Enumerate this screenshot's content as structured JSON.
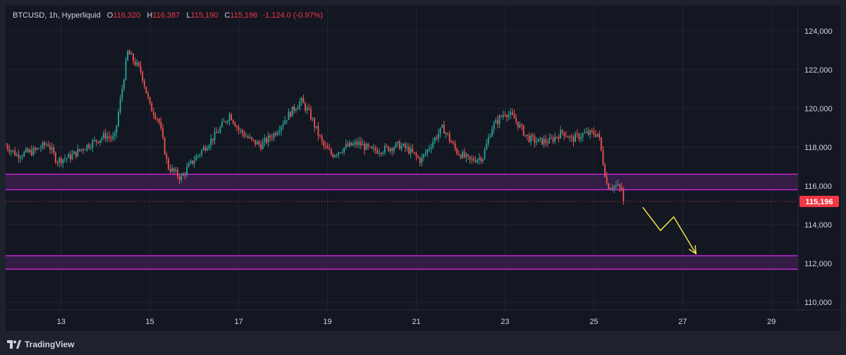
{
  "legend": {
    "symbol": "BTCUSD, 1h, Hyperliquid",
    "open_label": "O",
    "open": "116,320",
    "high_label": "H",
    "high": "116,387",
    "low_label": "L",
    "low": "115,190",
    "close_label": "C",
    "close": "115,196",
    "change": "-1,124.0 (-0.97%)"
  },
  "footer": {
    "brand": "TradingView"
  },
  "colors": {
    "background": "#131722",
    "up": "#26a69a",
    "down": "#ef5350",
    "zone": "#c026d3",
    "zone_fill": "#3b1f4a",
    "price_tag": "#f23645",
    "arrow": "#f5e642",
    "grid": "#1f2430"
  },
  "chart_data": {
    "type": "candlestick",
    "x_tick_labels": [
      "13",
      "15",
      "17",
      "19",
      "21",
      "23",
      "25",
      "27",
      "29"
    ],
    "y_tick_labels": [
      "110,000",
      "112,000",
      "114,000",
      "116,000",
      "118,000",
      "120,000",
      "122,000",
      "124,000"
    ],
    "ylim": [
      109600,
      125300
    ],
    "current_price": 115196,
    "current_price_label": "115,196",
    "zones": [
      {
        "low": 115800,
        "high": 116600
      },
      {
        "low": 111700,
        "high": 112400
      }
    ],
    "projection": [
      {
        "day": 26.1,
        "price": 114900
      },
      {
        "day": 26.5,
        "price": 113700
      },
      {
        "day": 26.8,
        "price": 114400
      },
      {
        "day": 27.3,
        "price": 112500
      }
    ],
    "anchors": [
      [
        11.75,
        118100
      ],
      [
        12.0,
        117600
      ],
      [
        12.4,
        117800
      ],
      [
        12.7,
        118200
      ],
      [
        12.9,
        117300
      ],
      [
        13.2,
        117500
      ],
      [
        13.6,
        118100
      ],
      [
        14.0,
        118600
      ],
      [
        14.2,
        118400
      ],
      [
        14.5,
        122900
      ],
      [
        14.8,
        121900
      ],
      [
        15.0,
        120100
      ],
      [
        15.2,
        119400
      ],
      [
        15.4,
        117000
      ],
      [
        15.7,
        116400
      ],
      [
        15.9,
        117100
      ],
      [
        16.2,
        117900
      ],
      [
        16.5,
        118700
      ],
      [
        16.8,
        119700
      ],
      [
        17.0,
        118900
      ],
      [
        17.3,
        118300
      ],
      [
        17.5,
        118100
      ],
      [
        17.8,
        118700
      ],
      [
        18.1,
        119600
      ],
      [
        18.4,
        120400
      ],
      [
        18.6,
        119700
      ],
      [
        18.9,
        118100
      ],
      [
        19.1,
        117600
      ],
      [
        19.4,
        118000
      ],
      [
        19.7,
        118200
      ],
      [
        20.0,
        117800
      ],
      [
        20.3,
        117900
      ],
      [
        20.6,
        118100
      ],
      [
        20.8,
        117900
      ],
      [
        21.1,
        117300
      ],
      [
        21.4,
        118400
      ],
      [
        21.6,
        119000
      ],
      [
        21.9,
        117800
      ],
      [
        22.2,
        117300
      ],
      [
        22.5,
        117500
      ],
      [
        22.7,
        119000
      ],
      [
        23.0,
        119800
      ],
      [
        23.2,
        119500
      ],
      [
        23.5,
        118500
      ],
      [
        23.7,
        118300
      ],
      [
        24.0,
        118300
      ],
      [
        24.3,
        118800
      ],
      [
        24.5,
        118400
      ],
      [
        24.8,
        118700
      ],
      [
        25.1,
        118700
      ],
      [
        25.3,
        116000
      ],
      [
        25.5,
        116000
      ],
      [
        25.7,
        115700
      ]
    ]
  }
}
